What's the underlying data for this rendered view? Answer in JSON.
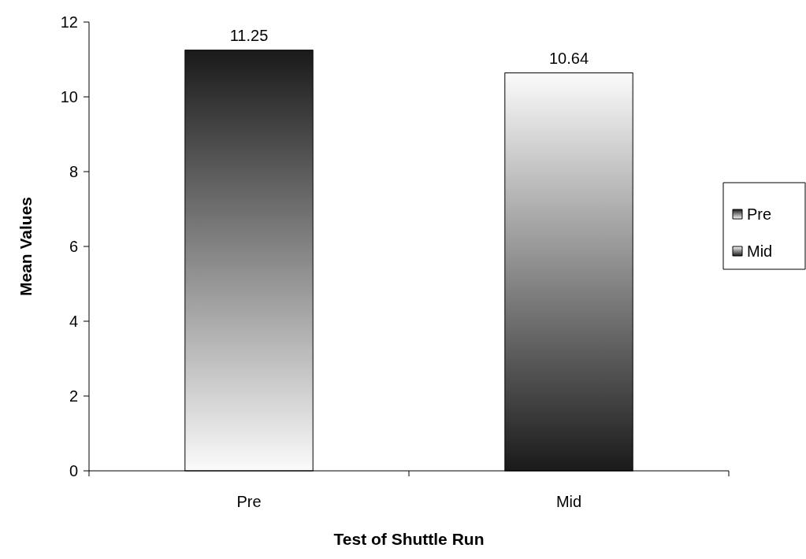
{
  "chart_data": {
    "type": "bar",
    "xlabel": "Test of Shuttle Run",
    "ylabel": "Mean Values",
    "categories": [
      "Pre",
      "Mid"
    ],
    "series": [
      {
        "name": "Pre",
        "color": "#1a1a1a",
        "values": [
          11.25,
          null
        ]
      },
      {
        "name": "Mid",
        "color": "#1a1a1a",
        "values": [
          null,
          10.64
        ]
      }
    ],
    "ylim": [
      0,
      12
    ],
    "yticks": [
      0,
      2,
      4,
      6,
      8,
      10,
      12
    ],
    "data_labels": true,
    "legend": "right",
    "grid": false
  }
}
